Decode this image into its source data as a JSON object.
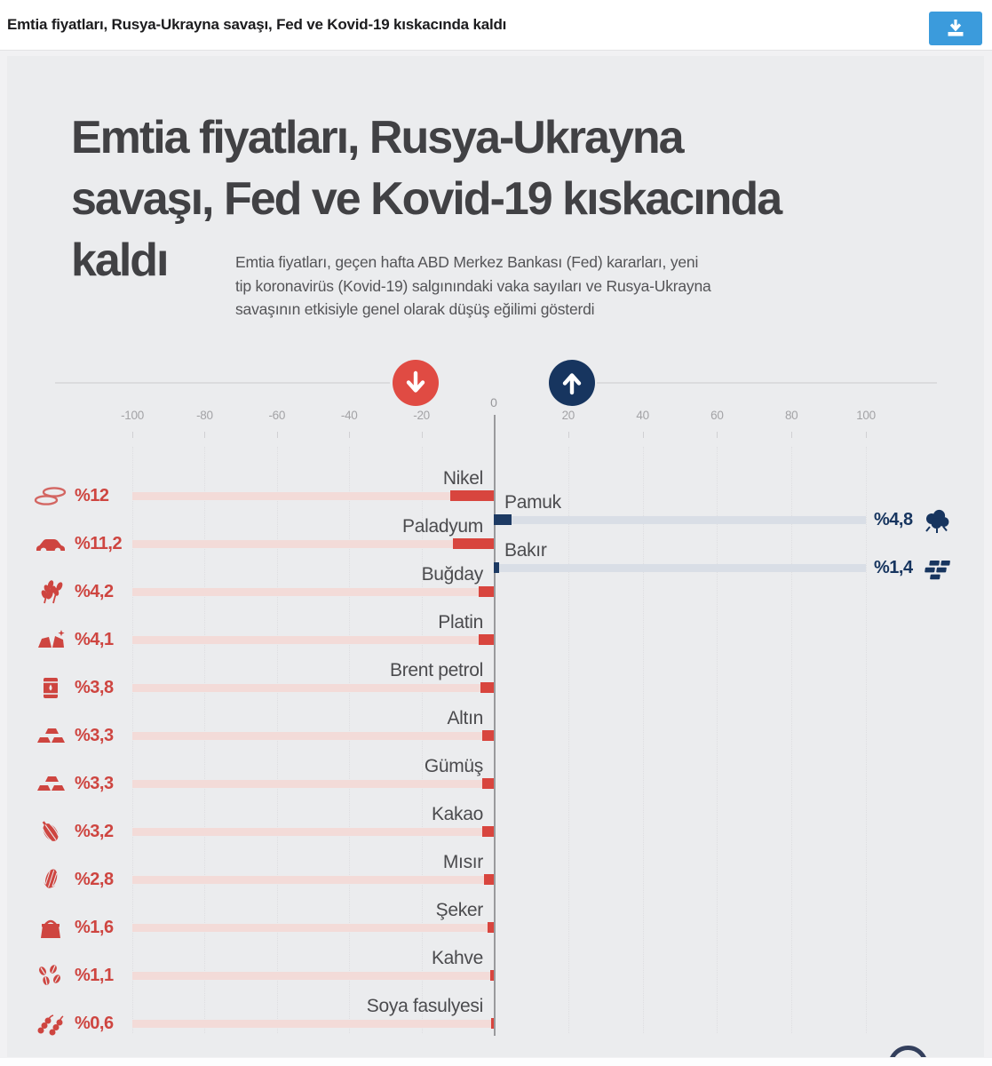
{
  "topbar": {
    "title": "Emtia fiyatları, Rusya-Ukrayna savaşı, Fed ve Kovid-19 kıskacında kaldı",
    "download_button": "download"
  },
  "header": {
    "title_lines": [
      "Emtia fiyatları, Rusya-Ukrayna",
      "savaşı, Fed ve Kovid-19 kıskacında",
      "kaldı"
    ],
    "subtitle_lines": [
      "Emtia fiyatları, geçen hafta ABD Merkez Bankası (Fed) kararları, yeni",
      "tip koronavirüs (Kovid-19) salgınındaki vaka sayıları ve Rusya-Ukrayna",
      "savaşının etkisiyle genel olarak düşüş eğilimi gösterdi"
    ]
  },
  "axis": {
    "zero_label": "0",
    "tick_labels": [
      "-100",
      "-80",
      "-60",
      "-40",
      "-20",
      "20",
      "40",
      "60",
      "80",
      "100"
    ]
  },
  "legend": {
    "down_icon": "down-arrow-icon",
    "up_icon": "up-arrow-icon",
    "down_color": "#e04b43",
    "up_color": "#17355f"
  },
  "chart_data": {
    "type": "bar",
    "orientation": "horizontal-diverging",
    "title": "Emtia fiyatları, Rusya-Ukrayna savaşı, Fed ve Kovid-19 kıskacında kaldı",
    "unit": "% weekly change",
    "xlim": [
      -100,
      100
    ],
    "grid": true,
    "colors": {
      "down": "#d8453e",
      "down_track": "#f3dbd8",
      "up": "#1d3a63",
      "up_track": "#d9dee6"
    },
    "items": [
      {
        "label": "Nikel",
        "slug": "nikel",
        "value": 12,
        "display": "%12",
        "direction": "down",
        "icon": "nickel-rings-icon"
      },
      {
        "label": "Pamuk",
        "slug": "pamuk",
        "value": 4.8,
        "display": "%4,8",
        "direction": "up",
        "icon": "cotton-icon"
      },
      {
        "label": "Paladyum",
        "slug": "paladyum",
        "value": 11.2,
        "display": "%11,2",
        "direction": "down",
        "icon": "palladium-car-icon"
      },
      {
        "label": "Bakır",
        "slug": "bakir",
        "value": 1.4,
        "display": "%1,4",
        "direction": "up",
        "icon": "copper-ingots-icon"
      },
      {
        "label": "Buğday",
        "slug": "bugday",
        "value": 4.2,
        "display": "%4,2",
        "direction": "down",
        "icon": "wheat-icon"
      },
      {
        "label": "Platin",
        "slug": "platin",
        "value": 4.1,
        "display": "%4,1",
        "direction": "down",
        "icon": "platinum-nuggets-icon"
      },
      {
        "label": "Brent petrol",
        "slug": "brent-petrol",
        "value": 3.8,
        "display": "%3,8",
        "direction": "down",
        "icon": "oil-barrel-icon"
      },
      {
        "label": "Altın",
        "slug": "altin",
        "value": 3.3,
        "display": "%3,3",
        "direction": "down",
        "icon": "gold-ingots-icon"
      },
      {
        "label": "Gümüş",
        "slug": "gumus",
        "value": 3.3,
        "display": "%3,3",
        "direction": "down",
        "icon": "silver-ingots-icon"
      },
      {
        "label": "Kakao",
        "slug": "kakao",
        "value": 3.2,
        "display": "%3,2",
        "direction": "down",
        "icon": "cocoa-pod-icon"
      },
      {
        "label": "Mısır",
        "slug": "misir",
        "value": 2.8,
        "display": "%2,8",
        "direction": "down",
        "icon": "corn-icon"
      },
      {
        "label": "Şeker",
        "slug": "seker",
        "value": 1.6,
        "display": "%1,6",
        "direction": "down",
        "icon": "sugar-sack-icon"
      },
      {
        "label": "Kahve",
        "slug": "kahve",
        "value": 1.1,
        "display": "%1,1",
        "direction": "down",
        "icon": "coffee-beans-icon"
      },
      {
        "label": "Soya fasulyesi",
        "slug": "soya-fasulyesi",
        "value": 0.6,
        "display": "%0,6",
        "direction": "down",
        "icon": "soybean-icon"
      }
    ]
  }
}
